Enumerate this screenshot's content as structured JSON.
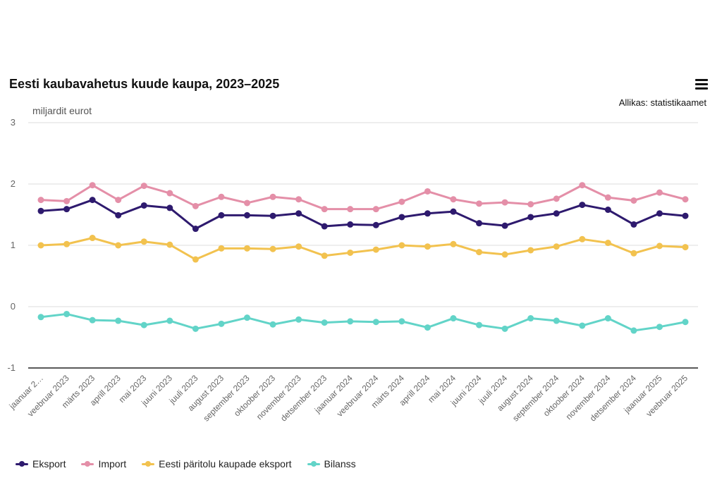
{
  "header": {
    "title": "Eesti kaubavahetus kuude kaupa, 2023–2025",
    "source": "Allikas: statistikaamet",
    "menu_icon": "hamburger-menu-icon"
  },
  "chart_data": {
    "type": "line",
    "title": "Eesti kaubavahetus kuude kaupa, 2023–2025",
    "ylabel": "miljardit eurot",
    "xlabel": "",
    "ylim": [
      -1,
      3
    ],
    "yticks": [
      "3",
      "2",
      "1",
      "0",
      "-1"
    ],
    "ytick_values": [
      3,
      2,
      1,
      0,
      -1
    ],
    "grid": true,
    "legend": "bottom-left",
    "categories": [
      "jaanuar 2…",
      "veebruar 2023",
      "märts 2023",
      "aprill 2023",
      "mai 2023",
      "juuni 2023",
      "juuli 2023",
      "august 2023",
      "september 2023",
      "oktoober 2023",
      "november 2023",
      "detsember 2023",
      "jaanuar 2024",
      "veebruar 2024",
      "märts 2024",
      "aprill 2024",
      "mai 2024",
      "juuni 2024",
      "juuli 2024",
      "august 2024",
      "september 2024",
      "oktoober 2024",
      "november 2024",
      "detsember 2024",
      "jaanuar 2025",
      "veebruar 2025"
    ],
    "series": [
      {
        "name": "Eksport",
        "color": "#2e1a6e",
        "values": [
          1.56,
          1.59,
          1.74,
          1.49,
          1.65,
          1.61,
          1.27,
          1.49,
          1.49,
          1.48,
          1.52,
          1.31,
          1.34,
          1.33,
          1.46,
          1.52,
          1.55,
          1.36,
          1.32,
          1.46,
          1.52,
          1.66,
          1.58,
          1.34,
          1.52,
          1.48
        ]
      },
      {
        "name": "Import",
        "color": "#e48fa8",
        "values": [
          1.74,
          1.72,
          1.98,
          1.74,
          1.97,
          1.85,
          1.64,
          1.79,
          1.69,
          1.79,
          1.75,
          1.59,
          1.59,
          1.59,
          1.71,
          1.88,
          1.75,
          1.68,
          1.7,
          1.67,
          1.76,
          1.98,
          1.78,
          1.73,
          1.86,
          1.75
        ]
      },
      {
        "name": "Eesti päritolu kaupade eksport",
        "color": "#f2c24f",
        "values": [
          1.0,
          1.02,
          1.12,
          1.0,
          1.06,
          1.01,
          0.77,
          0.95,
          0.95,
          0.94,
          0.98,
          0.83,
          0.88,
          0.93,
          1.0,
          0.98,
          1.02,
          0.89,
          0.85,
          0.92,
          0.98,
          1.1,
          1.04,
          0.87,
          0.99,
          0.97
        ]
      },
      {
        "name": "Bilanss",
        "color": "#62d4c8",
        "values": [
          -0.17,
          -0.12,
          -0.22,
          -0.23,
          -0.3,
          -0.23,
          -0.36,
          -0.28,
          -0.18,
          -0.29,
          -0.21,
          -0.26,
          -0.24,
          -0.25,
          -0.24,
          -0.34,
          -0.19,
          -0.3,
          -0.36,
          -0.19,
          -0.23,
          -0.31,
          -0.19,
          -0.39,
          -0.33,
          -0.25
        ]
      }
    ]
  }
}
